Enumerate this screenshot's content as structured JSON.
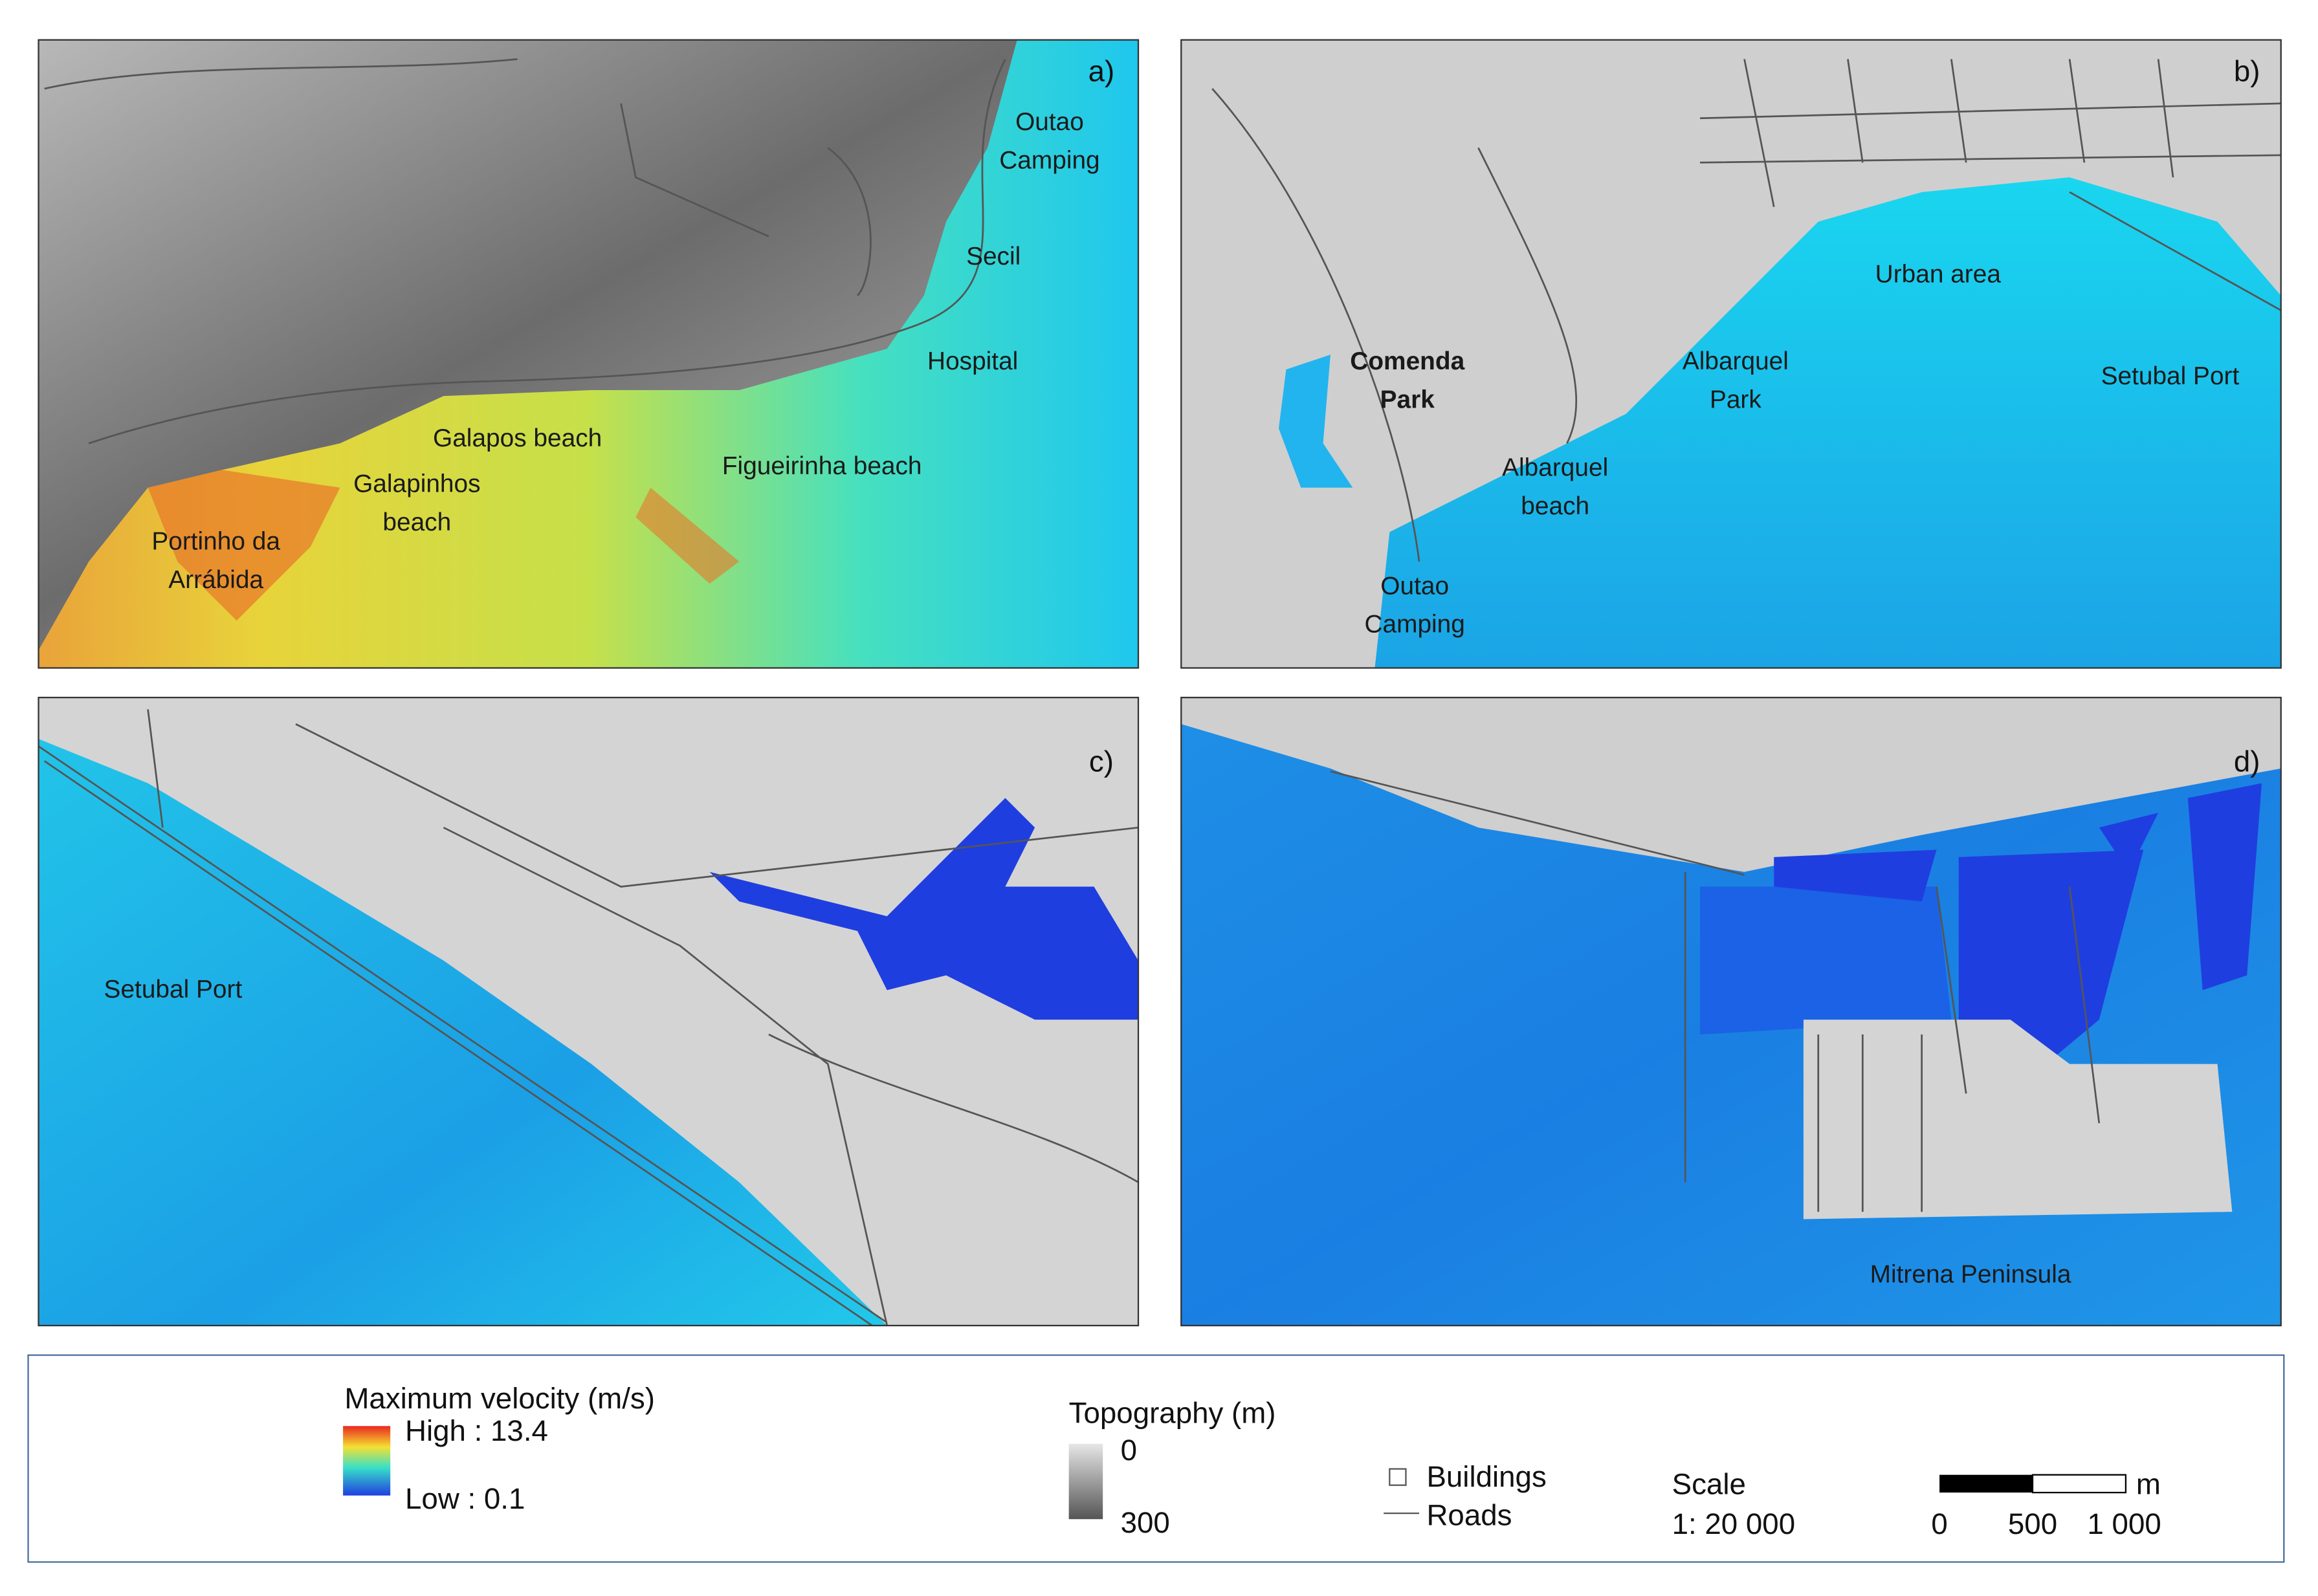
{
  "panels": [
    {
      "label": "a)",
      "places": [
        {
          "lines": [
            "Outao",
            "Camping"
          ]
        },
        {
          "lines": [
            "Secil"
          ]
        },
        {
          "lines": [
            "Hospital"
          ]
        },
        {
          "lines": [
            "Galapos beach"
          ]
        },
        {
          "lines": [
            "Galapinhos",
            "beach"
          ]
        },
        {
          "lines": [
            "Figueirinha beach"
          ]
        },
        {
          "lines": [
            "Portinho da",
            "Arrábida"
          ]
        }
      ]
    },
    {
      "label": "b)",
      "places": [
        {
          "lines": [
            "Urban area"
          ]
        },
        {
          "lines": [
            "Comenda",
            "Park"
          ]
        },
        {
          "lines": [
            "Albarquel",
            "Park"
          ]
        },
        {
          "lines": [
            "Setubal Port"
          ]
        },
        {
          "lines": [
            "Albarquel",
            "beach"
          ]
        },
        {
          "lines": [
            "Outao",
            "Camping"
          ]
        }
      ]
    },
    {
      "label": "c)",
      "places": [
        {
          "lines": [
            "Setubal Port"
          ]
        }
      ]
    },
    {
      "label": "d)",
      "places": [
        {
          "lines": [
            "Mitrena Peninsula"
          ]
        }
      ]
    }
  ],
  "legend": {
    "velocity_title": "Maximum velocity (m/s)",
    "velocity_high": "High : 13.4",
    "velocity_low": "Low : 0.1",
    "topography_title": "Topography (m)",
    "topography_top": "0",
    "topography_bottom": "300",
    "buildings": "Buildings",
    "roads": "Roads",
    "scale_title": "Scale",
    "scale_ratio": "1: 20 000",
    "scale_ticks": [
      "0",
      "500",
      "1 000"
    ],
    "scale_unit": "m"
  }
}
